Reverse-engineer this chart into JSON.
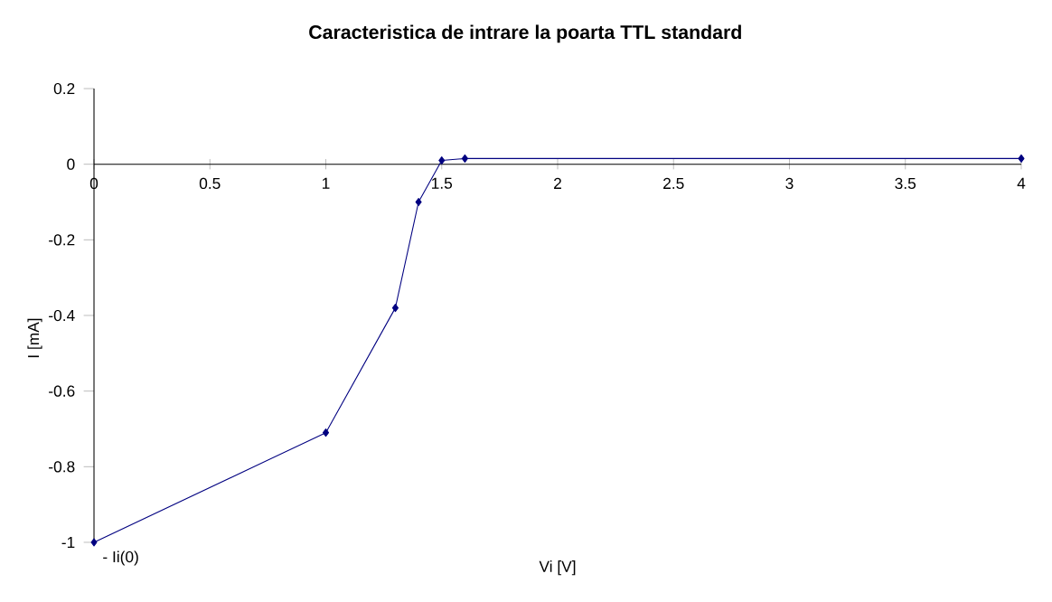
{
  "chart_data": {
    "type": "line",
    "title": "Caracteristica de intrare la poarta TTL standard",
    "xlabel": "Vi [V]",
    "ylabel": "I [mA]",
    "x": [
      0,
      1,
      1.3,
      1.4,
      1.5,
      1.6,
      4
    ],
    "series": [
      {
        "color": "#000080",
        "values": [
          -1,
          -0.71,
          -0.38,
          -0.1,
          0.01,
          0.015,
          0.015
        ]
      }
    ],
    "xlim": [
      0,
      4
    ],
    "ylim": [
      -1,
      0.2
    ],
    "xticks": [
      0,
      0.5,
      1,
      1.5,
      2,
      2.5,
      3,
      3.5,
      4
    ],
    "yticks": [
      -1,
      -0.8,
      -0.6,
      -0.4,
      -0.2,
      0,
      0.2
    ],
    "marker": "diamond",
    "line_style": "solid",
    "annotations": [
      {
        "text": "- Ii(0)",
        "x": 0,
        "y": -1
      }
    ]
  }
}
